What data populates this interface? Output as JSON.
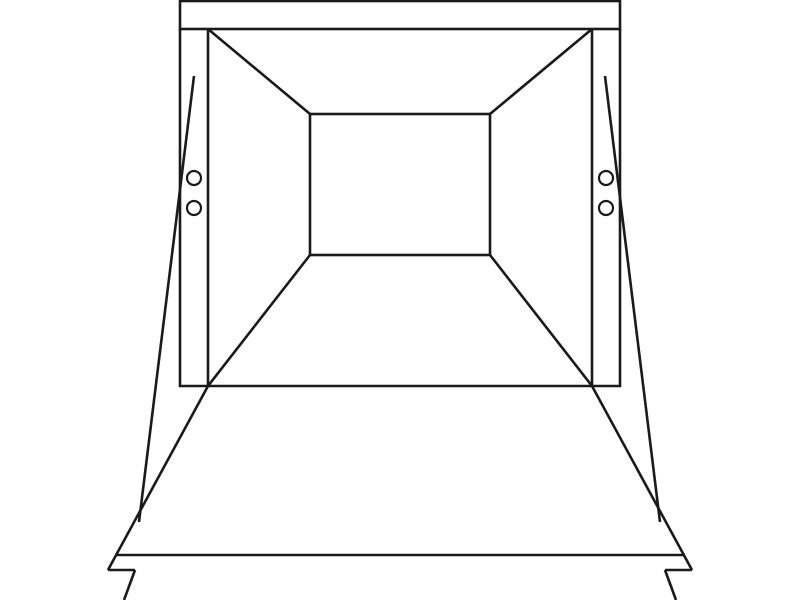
{
  "colors": {
    "stroke": "#1a1a1a",
    "background": "#ffffff"
  }
}
